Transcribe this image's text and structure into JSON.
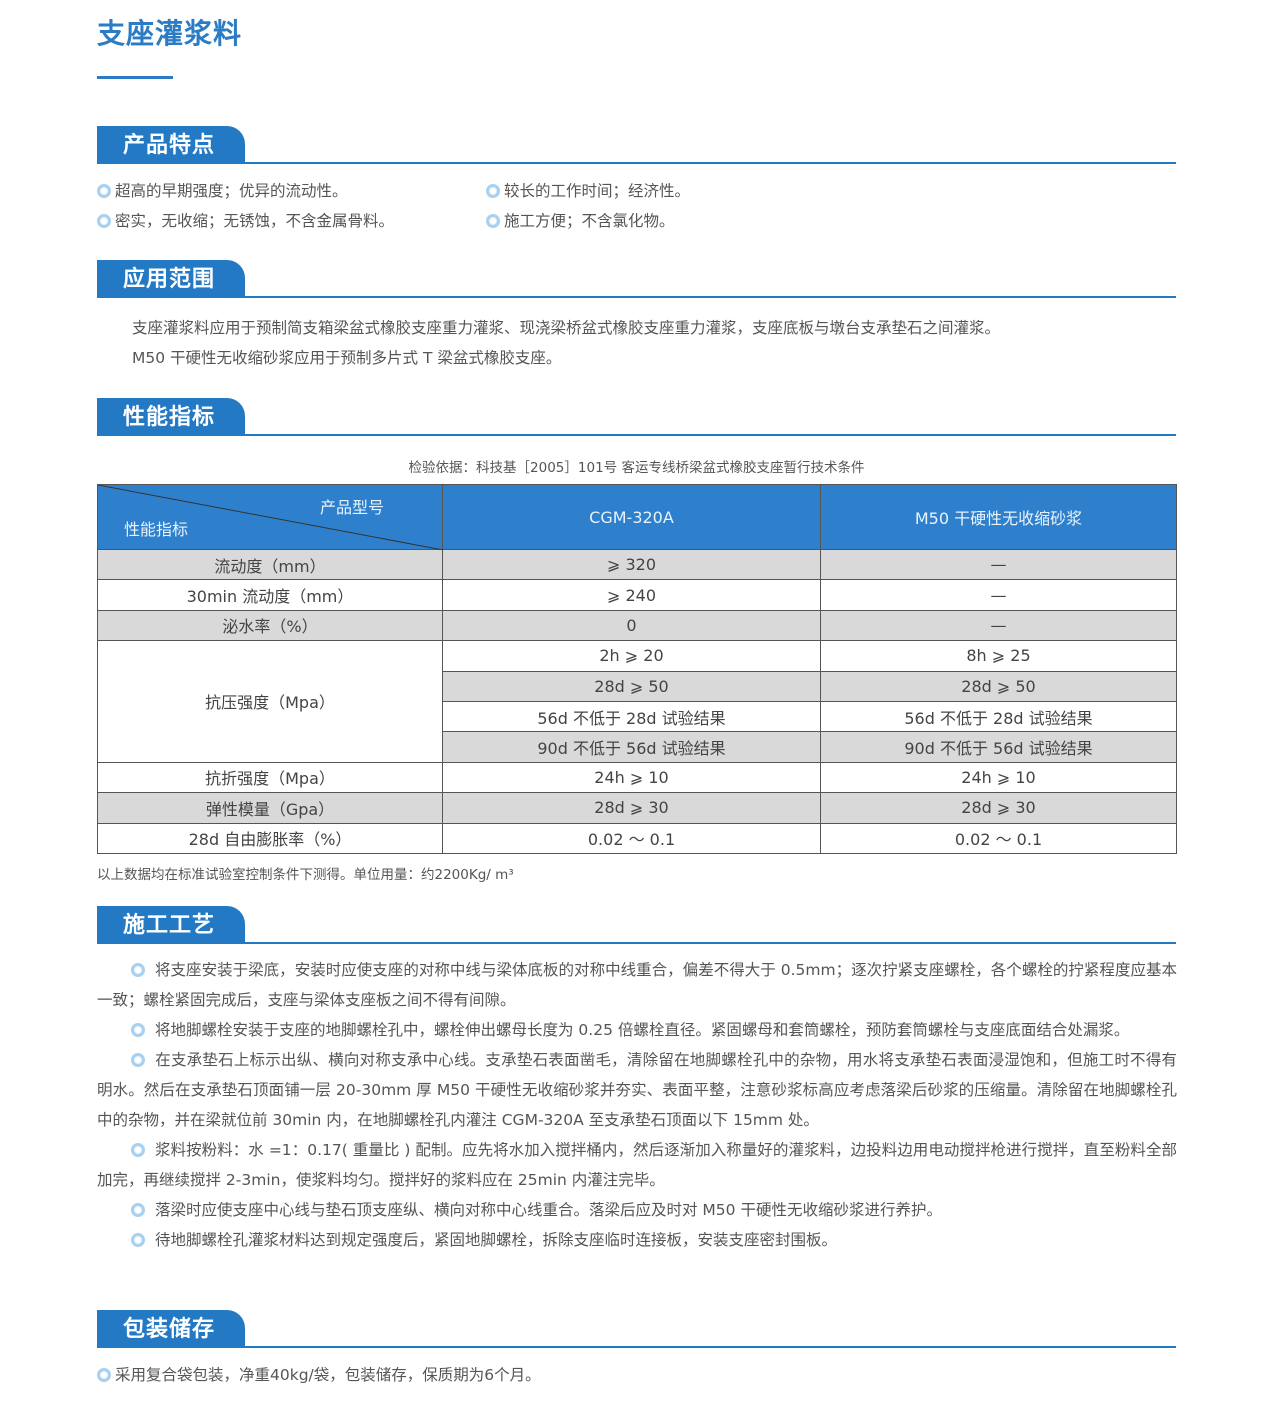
{
  "title": "支座灌浆料",
  "sections": {
    "features": {
      "title": "产品特点",
      "items": [
        "超高的早期强度；优异的流动性。",
        "较长的工作时间；经济性。",
        "密实，无收缩；无锈蚀，不含金属骨料。",
        "施工方便；不含氯化物。"
      ]
    },
    "scope": {
      "title": "应用范围",
      "lines": [
        "支座灌浆料应用于预制简支箱梁盆式橡胶支座重力灌浆、现浇梁桥盆式橡胶支座重力灌浆，支座底板与墩台支承垫石之间灌浆。",
        "M50 干硬性无收缩砂浆应用于预制多片式 T 梁盆式橡胶支座。"
      ]
    },
    "performance": {
      "title": "性能指标",
      "basis": "检验依据：科技基［2005］101号 客运专线桥梁盆式橡胶支座暂行技术条件",
      "table": {
        "corner_top": "产品型号",
        "corner_bottom": "性能指标",
        "columns": [
          "CGM-320A",
          "M50 干硬性无收缩砂浆"
        ],
        "rows": [
          {
            "label": "流动度（mm）",
            "values": [
              "⩾ 320",
              "—"
            ]
          },
          {
            "label": "30min 流动度（mm）",
            "values": [
              "⩾ 240",
              "—"
            ]
          },
          {
            "label": "泌水率（%）",
            "values": [
              "0",
              "—"
            ]
          },
          {
            "label": "抗压强度（Mpa）",
            "sub": [
              [
                "2h ⩾ 20",
                "8h ⩾ 25"
              ],
              [
                "28d ⩾ 50",
                "28d ⩾ 50"
              ],
              [
                "56d 不低于 28d 试验结果",
                "56d 不低于 28d 试验结果"
              ],
              [
                "90d 不低于 56d 试验结果",
                "90d 不低于 56d 试验结果"
              ]
            ]
          },
          {
            "label": "抗折强度（Mpa）",
            "values": [
              "24h ⩾ 10",
              "24h ⩾ 10"
            ]
          },
          {
            "label": "弹性模量（Gpa）",
            "values": [
              "28d ⩾ 30",
              "28d ⩾ 30"
            ]
          },
          {
            "label": "28d 自由膨胀率（%）",
            "values": [
              "0.02 ～ 0.1",
              "0.02 ～ 0.1"
            ]
          }
        ]
      },
      "note": "以上数据均在标准试验室控制条件下测得。单位用量：约2200Kg/ m³"
    },
    "process": {
      "title": "施工工艺",
      "paragraphs": [
        "将支座安装于梁底，安装时应使支座的对称中线与梁体底板的对称中线重合，偏差不得大于 0.5mm；逐次拧紧支座螺栓，各个螺栓的拧紧程度应基本一致；螺栓紧固完成后，支座与梁体支座板之间不得有间隙。",
        "将地脚螺栓安装于支座的地脚螺栓孔中，螺栓伸出螺母长度为 0.25 倍螺栓直径。紧固螺母和套筒螺栓，预防套筒螺栓与支座底面结合处漏浆。",
        "在支承垫石上标示出纵、横向对称支承中心线。支承垫石表面凿毛，清除留在地脚螺栓孔中的杂物，用水将支承垫石表面浸湿饱和，但施工时不得有明水。然后在支承垫石顶面铺一层 20-30mm 厚 M50 干硬性无收缩砂浆并夯实、表面平整，注意砂浆标高应考虑落梁后砂浆的压缩量。清除留在地脚螺栓孔中的杂物，并在梁就位前 30min 内，在地脚螺栓孔内灌注 CGM-320A 至支承垫石顶面以下 15mm 处。",
        "浆料按粉料：水 =1：0.17( 重量比 ) 配制。应先将水加入搅拌桶内，然后逐渐加入称量好的灌浆料，边投料边用电动搅拌枪进行搅拌，直至粉料全部加完，再继续搅拌 2-3min，使浆料均匀。搅拌好的浆料应在 25min 内灌注完毕。",
        "落梁时应使支座中心线与垫石顶支座纵、横向对称中心线重合。落梁后应及时对 M50 干硬性无收缩砂浆进行养护。",
        "待地脚螺栓孔灌浆材料达到规定强度后，紧固地脚螺栓，拆除支座临时连接板，安装支座密封围板。"
      ]
    },
    "storage": {
      "title": "包装储存",
      "items": [
        "采用复合袋包装，净重40kg/袋，包装储存，保质期为6个月。"
      ]
    }
  },
  "colors": {
    "accent": "#2379c4",
    "table_header": "#2e80cc",
    "row_shade": "#d9d9d9"
  }
}
